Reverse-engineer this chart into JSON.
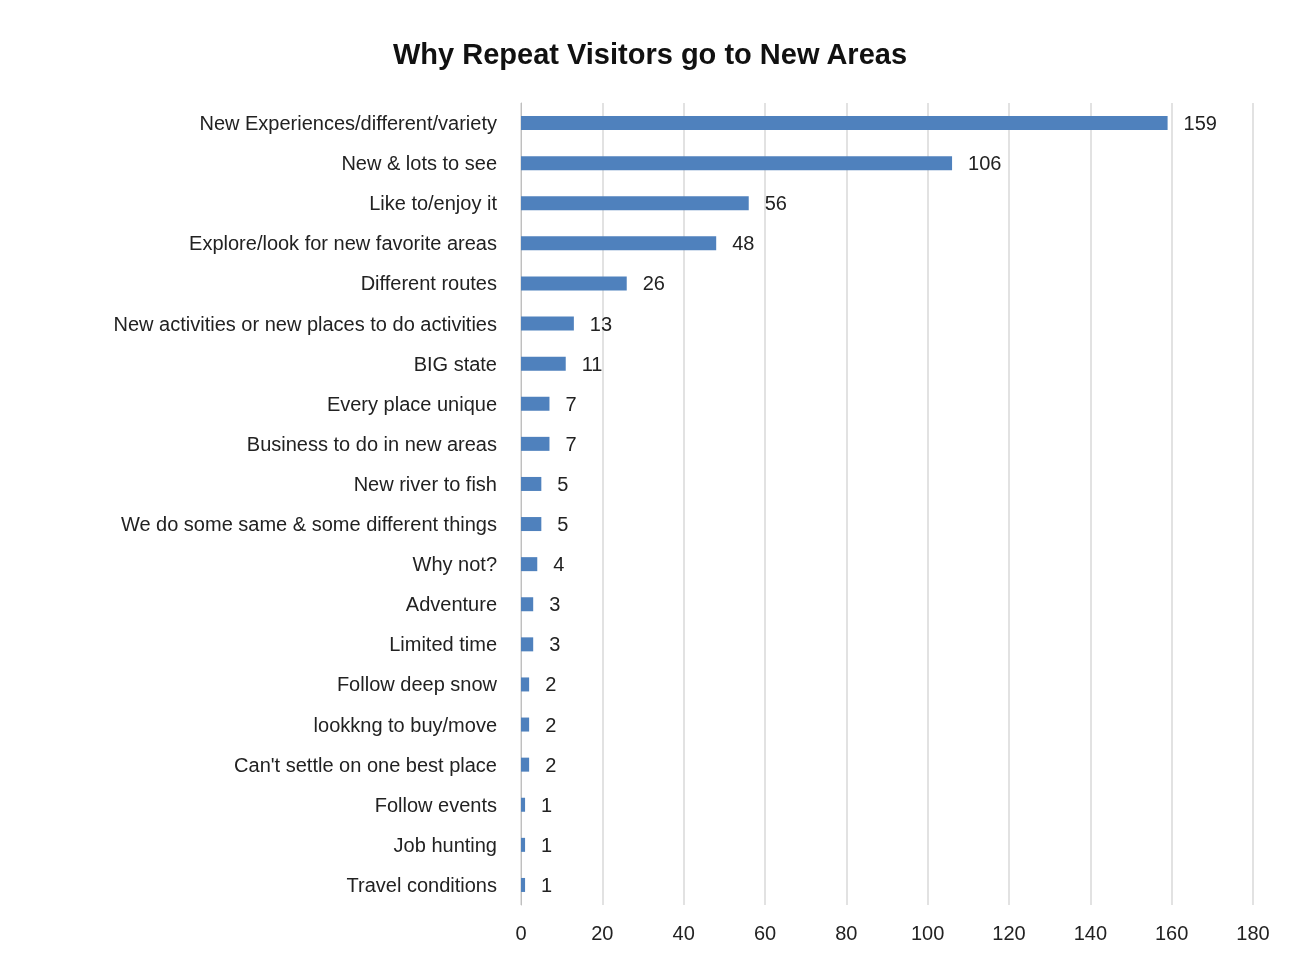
{
  "chart_data": {
    "type": "bar",
    "orientation": "horizontal",
    "title": "Why Repeat Visitors go to New Areas",
    "categories": [
      "New Experiences/different/variety",
      "New & lots to see",
      "Like to/enjoy it",
      "Explore/look for new favorite areas",
      "Different routes",
      "New activities or new places to do activities",
      "BIG state",
      "Every place unique",
      "Business to do in new areas",
      "New river to fish",
      "We do some same & some different things",
      "Why not?",
      "Adventure",
      "Limited time",
      "Follow deep snow",
      "lookkng to buy/move",
      "Can't settle on one best place",
      "Follow events",
      "Job hunting",
      "Travel conditions"
    ],
    "values": [
      159,
      106,
      56,
      48,
      26,
      13,
      11,
      7,
      7,
      5,
      5,
      4,
      3,
      3,
      2,
      2,
      2,
      1,
      1,
      1
    ],
    "color": "#4f81bd",
    "xlim": [
      0,
      180
    ],
    "xticks": [
      0,
      20,
      40,
      60,
      80,
      100,
      120,
      140,
      160,
      180
    ],
    "grid": "x",
    "data_labels": true
  }
}
